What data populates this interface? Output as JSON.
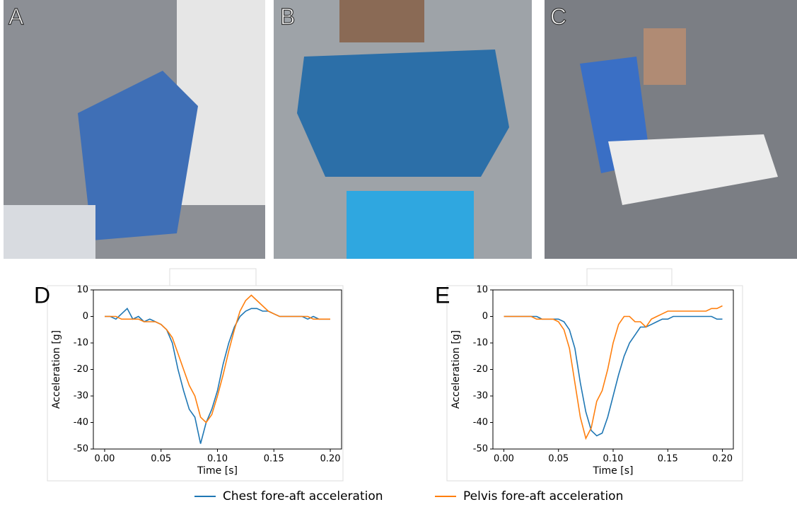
{
  "photo_panels": [
    {
      "label": "A"
    },
    {
      "label": "B"
    },
    {
      "label": "C"
    }
  ],
  "chart_data": [
    {
      "type": "line",
      "label": "D",
      "xlabel": "Time [s]",
      "ylabel": "Acceleration [g]",
      "xlim": [
        -0.01,
        0.21
      ],
      "ylim": [
        -50,
        10
      ],
      "xticks": [
        {
          "value": 0,
          "label": "0.00"
        },
        0.05,
        {
          "value": 0.1,
          "label": "0.10"
        },
        0.15,
        {
          "value": 0.2,
          "label": "0.20"
        }
      ],
      "yticks": [
        -50,
        -40,
        -30,
        -20,
        -10,
        0,
        10
      ],
      "x": [
        0,
        0.005,
        0.01,
        0.015,
        0.02,
        0.025,
        0.03,
        0.035,
        0.04,
        0.045,
        0.05,
        0.055,
        0.06,
        0.065,
        0.07,
        0.075,
        0.08,
        0.085,
        0.09,
        0.095,
        0.1,
        0.105,
        0.11,
        0.115,
        0.12,
        0.125,
        0.13,
        0.135,
        0.14,
        0.145,
        0.15,
        0.155,
        0.16,
        0.165,
        0.17,
        0.175,
        0.18,
        0.185,
        0.19,
        0.195,
        0.2
      ],
      "series": [
        {
          "name": "Chest fore-aft acceleration",
          "color": "#1f77b4",
          "values": [
            0,
            0,
            -1,
            1,
            3,
            -1,
            0,
            -2,
            -1,
            -2,
            -3,
            -5,
            -10,
            -20,
            -28,
            -35,
            -38,
            -48,
            -40,
            -35,
            -28,
            -18,
            -10,
            -4,
            0,
            2,
            3,
            3,
            2,
            2,
            1,
            0,
            0,
            0,
            0,
            0,
            -1,
            0,
            -1,
            -1,
            -1
          ]
        },
        {
          "name": "Pelvis fore-aft acceleration",
          "color": "#ff7f0e",
          "values": [
            0,
            0,
            0,
            -1,
            -1,
            -1,
            -1,
            -2,
            -2,
            -2,
            -3,
            -5,
            -8,
            -14,
            -20,
            -26,
            -30,
            -38,
            -40,
            -37,
            -30,
            -22,
            -13,
            -5,
            2,
            6,
            8,
            6,
            4,
            2,
            1,
            0,
            0,
            0,
            0,
            0,
            0,
            -1,
            -1,
            -1,
            -1
          ]
        }
      ]
    },
    {
      "type": "line",
      "label": "E",
      "xlabel": "Time [s]",
      "ylabel": "Acceleration [g]",
      "xlim": [
        -0.01,
        0.21
      ],
      "ylim": [
        -50,
        10
      ],
      "xticks": [
        {
          "value": 0,
          "label": "0.00"
        },
        0.05,
        {
          "value": 0.1,
          "label": "0.10"
        },
        0.15,
        {
          "value": 0.2,
          "label": "0.20"
        }
      ],
      "yticks": [
        -50,
        -40,
        -30,
        -20,
        -10,
        0,
        10
      ],
      "x": [
        0,
        0.005,
        0.01,
        0.015,
        0.02,
        0.025,
        0.03,
        0.035,
        0.04,
        0.045,
        0.05,
        0.055,
        0.06,
        0.065,
        0.07,
        0.075,
        0.08,
        0.085,
        0.09,
        0.095,
        0.1,
        0.105,
        0.11,
        0.115,
        0.12,
        0.125,
        0.13,
        0.135,
        0.14,
        0.145,
        0.15,
        0.155,
        0.16,
        0.165,
        0.17,
        0.175,
        0.18,
        0.185,
        0.19,
        0.195,
        0.2
      ],
      "series": [
        {
          "color": "#1f77b4",
          "values": [
            0,
            0,
            0,
            0,
            0,
            0,
            0,
            -1,
            -1,
            -1,
            -1,
            -2,
            -5,
            -12,
            -25,
            -36,
            -43,
            -45,
            -44,
            -38,
            -30,
            -22,
            -15,
            -10,
            -7,
            -4,
            -4,
            -3,
            -2,
            -1,
            -1,
            0,
            0,
            0,
            0,
            0,
            0,
            0,
            0,
            -1,
            -1
          ]
        },
        {
          "color": "#ff7f0e",
          "values": [
            0,
            0,
            0,
            0,
            0,
            0,
            -1,
            -1,
            -1,
            -1,
            -2,
            -5,
            -12,
            -25,
            -38,
            -46,
            -42,
            -32,
            -28,
            -20,
            -10,
            -3,
            0,
            0,
            -2,
            -2,
            -4,
            -1,
            0,
            1,
            2,
            2,
            2,
            2,
            2,
            2,
            2,
            2,
            3,
            3,
            4
          ]
        }
      ]
    }
  ]
}
